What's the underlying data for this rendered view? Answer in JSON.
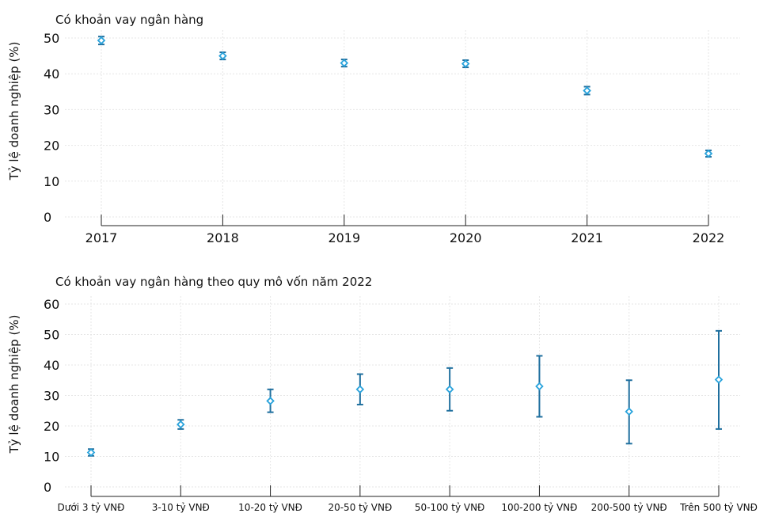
{
  "chart_data": [
    {
      "type": "scatter",
      "title": "Có khoản vay ngân hàng",
      "ylabel": "Tỷ lệ doanh nghiệp (%)",
      "xlabel": "",
      "ylim": [
        0,
        50
      ],
      "yticks": [
        0,
        10,
        20,
        30,
        40,
        50
      ],
      "grid": true,
      "categories": [
        "2017",
        "2018",
        "2019",
        "2020",
        "2021",
        "2022"
      ],
      "values": [
        49.3,
        45.0,
        43.0,
        42.8,
        35.3,
        17.7
      ],
      "error_low": [
        48.2,
        44.0,
        42.0,
        41.8,
        34.2,
        16.8
      ],
      "error_high": [
        50.4,
        46.0,
        44.0,
        43.8,
        36.4,
        18.6
      ]
    },
    {
      "type": "scatter",
      "title": "Có khoản vay ngân hàng theo quy mô vốn năm 2022",
      "ylabel": "Tỷ lệ doanh nghiệp (%)",
      "xlabel": "",
      "ylim": [
        0,
        60
      ],
      "yticks": [
        0,
        10,
        20,
        30,
        40,
        50,
        60
      ],
      "grid": true,
      "categories": [
        "Dưới 3 tỷ VNĐ",
        "3-10 tỷ VNĐ",
        "10-20 tỷ VNĐ",
        "20-50 tỷ VNĐ",
        "50-100 tỷ VNĐ",
        "100-200 tỷ VNĐ",
        "200-500 tỷ VNĐ",
        "Trên 500 tỷ VNĐ"
      ],
      "values": [
        11.3,
        20.5,
        28.2,
        32.0,
        32.0,
        33.0,
        24.7,
        35.2
      ],
      "error_low": [
        10.2,
        19.0,
        24.5,
        27.0,
        25.0,
        23.0,
        14.2,
        19.0
      ],
      "error_high": [
        12.4,
        22.0,
        32.0,
        37.0,
        39.0,
        43.0,
        35.0,
        51.2
      ]
    }
  ],
  "colors": {
    "marker": "#29a3dc",
    "errorbar": "#1f6f9e"
  }
}
